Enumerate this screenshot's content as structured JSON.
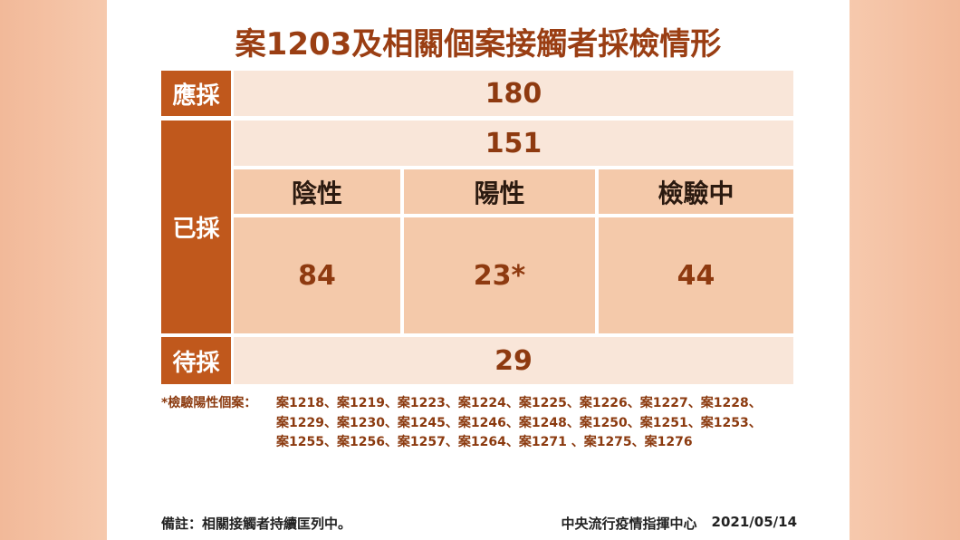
{
  "title": "案1203及相關個案接觸者採檢情形",
  "table": {
    "requested": {
      "label": "應採",
      "value": 180
    },
    "sampled": {
      "label": "已採",
      "total": 151,
      "headers": [
        "陰性",
        "陽性",
        "檢驗中"
      ],
      "values": [
        84,
        "23*",
        44
      ]
    },
    "pending": {
      "label": "待採",
      "value": 29
    }
  },
  "footnote": {
    "label": "*檢驗陽性個案：",
    "lines": [
      "案1218、案1219、案1223、案1224、案1225、案1226、案1227、案1228、",
      "案1229、案1230、案1245、案1246、案1248、案1250、案1251、案1253、",
      "案1255、案1256、案1257、案1264、案1271 、案1275、案1276"
    ]
  },
  "footer": {
    "note": "備註：相關接觸者持續匡列中。",
    "source": "中央流行疫情指揮中心",
    "date": "2021/05/14"
  }
}
